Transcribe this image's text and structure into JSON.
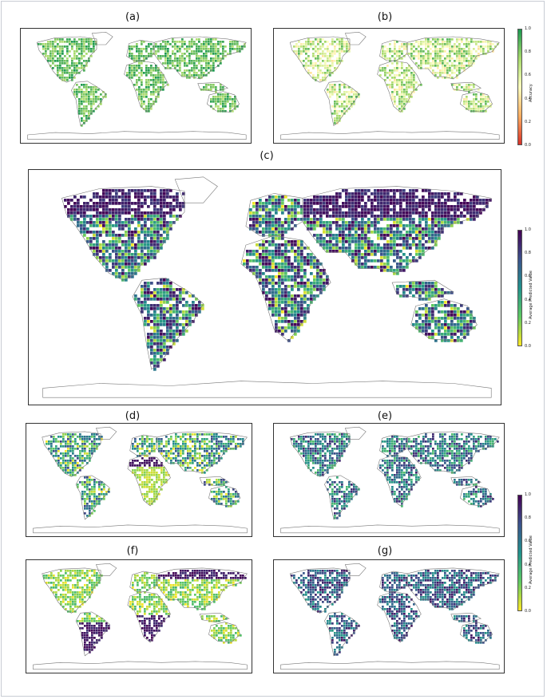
{
  "panels": [
    {
      "id": "a",
      "label": "(a)",
      "colormap": "accuracy"
    },
    {
      "id": "b",
      "label": "(b)",
      "colormap": "accuracy"
    },
    {
      "id": "c",
      "label": "(c)",
      "colormap": "viridis"
    },
    {
      "id": "d",
      "label": "(d)",
      "colormap": "viridis"
    },
    {
      "id": "e",
      "label": "(e)",
      "colormap": "viridis"
    },
    {
      "id": "f",
      "label": "(f)",
      "colormap": "viridis"
    },
    {
      "id": "g",
      "label": "(g)",
      "colormap": "viridis"
    }
  ],
  "colorbars": [
    {
      "id": "accuracy",
      "title": "Accuracy",
      "ticks": [
        "0.0",
        "0.2",
        "0.4",
        "0.6",
        "0.8",
        "1.0"
      ],
      "colors": [
        "#d73027",
        "#fdae61",
        "#ffffbf",
        "#a6d96a",
        "#1a9850"
      ]
    },
    {
      "id": "avg_pred_c",
      "title": "Average Predicted Value",
      "ticks": [
        "0.0",
        "0.2",
        "0.4",
        "0.6",
        "0.8",
        "1.0"
      ],
      "colors": [
        "#fde725",
        "#5ec962",
        "#21918c",
        "#3b528b",
        "#440154"
      ]
    },
    {
      "id": "avg_pred_dg",
      "title": "Average Predicted Value",
      "ticks": [
        "0.0",
        "0.2",
        "0.4",
        "0.6",
        "0.8",
        "1.0"
      ],
      "colors": [
        "#fde725",
        "#5ec962",
        "#21918c",
        "#3b528b",
        "#440154"
      ]
    }
  ],
  "chart_data": {
    "type": "heatmap",
    "description_units": "gridded global maps of values in range 0–1",
    "value_range": [
      0,
      1
    ]
  }
}
